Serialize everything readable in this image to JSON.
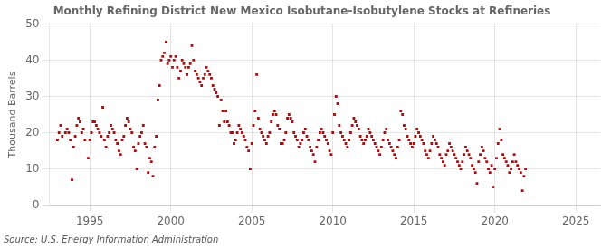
{
  "chart_data": {
    "type": "scatter",
    "title": "Monthly Refining District New Mexico Isobutane-Isobutylene Stocks at Refineries",
    "ylabel": "Thousand Barrels",
    "source": "Source: U.S. Energy Information Administration",
    "color": "#cc0000",
    "marker": "square",
    "grid": true,
    "xlim": [
      1992.5,
      2026.5
    ],
    "ylim": [
      0,
      50
    ],
    "xticks": [
      1995,
      2000,
      2005,
      2010,
      2015,
      2020,
      2025
    ],
    "yticks": [
      0,
      10,
      20,
      30,
      40,
      50
    ],
    "x": [
      1993.0,
      1993.1,
      1993.2,
      1993.3,
      1993.5,
      1993.6,
      1993.7,
      1993.8,
      1993.9,
      1994.0,
      1994.1,
      1994.2,
      1994.3,
      1994.4,
      1994.5,
      1994.6,
      1994.7,
      1994.9,
      1995.0,
      1995.1,
      1995.2,
      1995.3,
      1995.4,
      1995.5,
      1995.6,
      1995.7,
      1995.8,
      1995.9,
      1996.0,
      1996.1,
      1996.2,
      1996.3,
      1996.4,
      1996.5,
      1996.6,
      1996.7,
      1996.8,
      1996.9,
      1997.0,
      1997.1,
      1997.2,
      1997.3,
      1997.4,
      1997.5,
      1997.6,
      1997.7,
      1997.8,
      1997.9,
      1998.0,
      1998.1,
      1998.2,
      1998.3,
      1998.4,
      1998.5,
      1998.6,
      1998.7,
      1998.8,
      1998.9,
      1999.0,
      1999.1,
      1999.2,
      1999.3,
      1999.4,
      1999.5,
      1999.6,
      1999.7,
      1999.8,
      1999.9,
      2000.0,
      2000.1,
      2000.2,
      2000.3,
      2000.4,
      2000.5,
      2000.6,
      2000.7,
      2000.8,
      2000.9,
      2001.0,
      2001.1,
      2001.2,
      2001.3,
      2001.4,
      2001.5,
      2001.6,
      2001.7,
      2001.8,
      2001.9,
      2002.0,
      2002.1,
      2002.2,
      2002.3,
      2002.4,
      2002.5,
      2002.6,
      2002.7,
      2002.8,
      2002.9,
      2003.0,
      2003.1,
      2003.2,
      2003.3,
      2003.4,
      2003.5,
      2003.6,
      2003.7,
      2003.8,
      2003.9,
      2004.0,
      2004.1,
      2004.2,
      2004.3,
      2004.4,
      2004.5,
      2004.6,
      2004.7,
      2004.8,
      2004.9,
      2005.0,
      2005.1,
      2005.2,
      2005.3,
      2005.4,
      2005.5,
      2005.6,
      2005.7,
      2005.8,
      2005.9,
      2006.0,
      2006.1,
      2006.2,
      2006.3,
      2006.4,
      2006.5,
      2006.6,
      2006.7,
      2006.8,
      2006.9,
      2007.0,
      2007.1,
      2007.2,
      2007.3,
      2007.4,
      2007.5,
      2007.6,
      2007.7,
      2007.8,
      2007.9,
      2008.0,
      2008.1,
      2008.2,
      2008.3,
      2008.4,
      2008.5,
      2008.6,
      2008.7,
      2008.8,
      2008.9,
      2009.0,
      2009.1,
      2009.2,
      2009.3,
      2009.4,
      2009.5,
      2009.6,
      2009.7,
      2009.8,
      2009.9,
      2010.0,
      2010.1,
      2010.2,
      2010.3,
      2010.4,
      2010.5,
      2010.6,
      2010.7,
      2010.8,
      2010.9,
      2011.0,
      2011.1,
      2011.2,
      2011.3,
      2011.4,
      2011.5,
      2011.6,
      2011.7,
      2011.8,
      2011.9,
      2012.0,
      2012.1,
      2012.2,
      2012.3,
      2012.4,
      2012.5,
      2012.6,
      2012.7,
      2012.8,
      2012.9,
      2013.0,
      2013.1,
      2013.2,
      2013.3,
      2013.4,
      2013.5,
      2013.6,
      2013.7,
      2013.8,
      2013.9,
      2014.0,
      2014.1,
      2014.2,
      2014.3,
      2014.4,
      2014.5,
      2014.6,
      2014.7,
      2014.8,
      2014.9,
      2015.0,
      2015.1,
      2015.2,
      2015.3,
      2015.4,
      2015.5,
      2015.6,
      2015.7,
      2015.8,
      2015.9,
      2016.0,
      2016.1,
      2016.2,
      2016.3,
      2016.4,
      2016.5,
      2016.6,
      2016.7,
      2016.8,
      2016.9,
      2017.0,
      2017.1,
      2017.2,
      2017.3,
      2017.4,
      2017.5,
      2017.6,
      2017.7,
      2017.8,
      2017.9,
      2018.0,
      2018.1,
      2018.2,
      2018.3,
      2018.4,
      2018.5,
      2018.6,
      2018.7,
      2018.8,
      2018.9,
      2019.0,
      2019.1,
      2019.2,
      2019.3,
      2019.4,
      2019.5,
      2019.6,
      2019.7,
      2019.8,
      2019.9,
      2020.0,
      2020.1,
      2020.2,
      2020.3,
      2020.4,
      2020.5,
      2020.6,
      2020.7,
      2020.8,
      2020.9,
      2021.0,
      2021.1,
      2021.2,
      2021.3,
      2021.4,
      2021.5,
      2021.6,
      2021.7,
      2021.8,
      2021.9
    ],
    "values": [
      18,
      20,
      22,
      19,
      20,
      21,
      20,
      18,
      7,
      16,
      19,
      22,
      24,
      23,
      20,
      21,
      18,
      13,
      18,
      20,
      23,
      23,
      22,
      21,
      20,
      19,
      27,
      18,
      16,
      19,
      20,
      22,
      21,
      20,
      18,
      17,
      15,
      14,
      18,
      19,
      22,
      24,
      23,
      21,
      20,
      16,
      15,
      10,
      17,
      19,
      20,
      22,
      17,
      16,
      9,
      13,
      12,
      8,
      16,
      19,
      29,
      33,
      40,
      41,
      42,
      45,
      39,
      40,
      41,
      38,
      40,
      41,
      38,
      35,
      37,
      40,
      39,
      38,
      36,
      38,
      39,
      44,
      40,
      37,
      36,
      35,
      34,
      33,
      35,
      36,
      38,
      37,
      36,
      35,
      33,
      32,
      31,
      30,
      22,
      29,
      26,
      23,
      26,
      23,
      22,
      20,
      20,
      17,
      18,
      20,
      22,
      21,
      20,
      19,
      18,
      16,
      15,
      10,
      17,
      22,
      26,
      36,
      24,
      21,
      20,
      19,
      18,
      17,
      19,
      20,
      23,
      25,
      26,
      25,
      22,
      21,
      17,
      17,
      18,
      20,
      24,
      25,
      24,
      23,
      20,
      19,
      18,
      16,
      17,
      18,
      20,
      21,
      19,
      18,
      16,
      15,
      14,
      12,
      16,
      18,
      20,
      21,
      20,
      19,
      18,
      17,
      15,
      14,
      20,
      25,
      30,
      28,
      22,
      20,
      19,
      18,
      17,
      16,
      18,
      20,
      22,
      24,
      23,
      22,
      21,
      19,
      18,
      17,
      18,
      19,
      21,
      20,
      19,
      18,
      17,
      16,
      15,
      14,
      16,
      18,
      20,
      21,
      18,
      17,
      16,
      15,
      14,
      13,
      16,
      18,
      26,
      25,
      22,
      21,
      19,
      18,
      17,
      16,
      17,
      19,
      21,
      20,
      19,
      18,
      17,
      15,
      14,
      13,
      15,
      17,
      19,
      18,
      17,
      16,
      14,
      13,
      12,
      11,
      14,
      15,
      17,
      16,
      15,
      14,
      13,
      12,
      11,
      10,
      12,
      14,
      16,
      15,
      14,
      13,
      11,
      10,
      9,
      6,
      12,
      14,
      16,
      15,
      13,
      12,
      10,
      9,
      11,
      5,
      10,
      13,
      17,
      21,
      18,
      14,
      13,
      12,
      11,
      9,
      10,
      12,
      14,
      12,
      11,
      10,
      9,
      4,
      8,
      10
    ]
  }
}
